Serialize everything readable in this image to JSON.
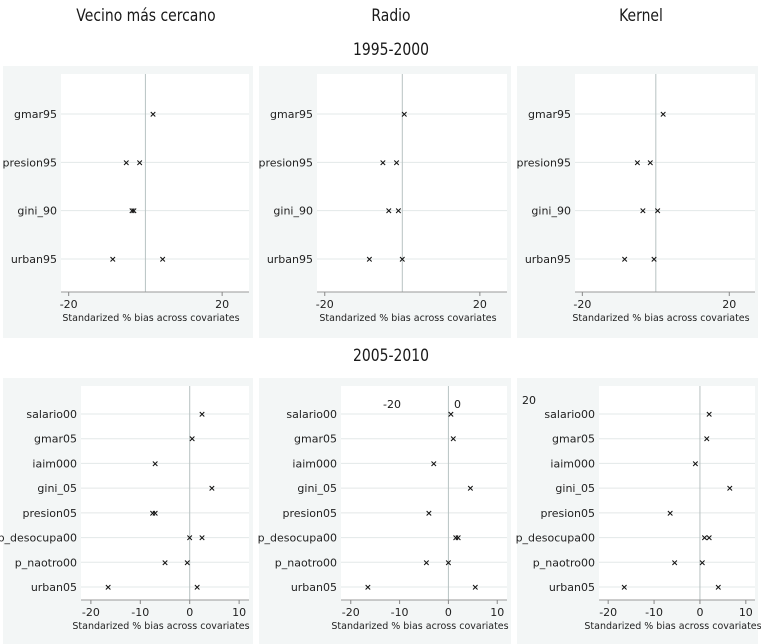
{
  "column_titles": [
    "Vecino más cercano",
    "Radio",
    "Kernel"
  ],
  "period_titles": [
    "1995-2000",
    "2005-2010"
  ],
  "stray_labels": [
    "-20",
    "0",
    "20"
  ],
  "chart_data": [
    {
      "type": "scatter",
      "panel": "Vecino más cercano 1995-2000",
      "xlabel": "Standarized % bias across covariates",
      "xticks": [
        -20,
        20
      ],
      "xlim": [
        -22,
        27
      ],
      "categories": [
        "gmar95",
        "presion95",
        "gini_90",
        "urban95"
      ],
      "unmatched": [
        null,
        -5.0,
        -3.5,
        -8.5
      ],
      "matched": [
        2.0,
        -1.5,
        -3.0,
        4.5
      ],
      "grid": true
    },
    {
      "type": "scatter",
      "panel": "Radio 1995-2000",
      "xlabel": "Standarized % bias across covariates",
      "xticks": [
        -20,
        20
      ],
      "xlim": [
        -22,
        27
      ],
      "categories": [
        "gmar95",
        "presion95",
        "gini_90",
        "urban95"
      ],
      "unmatched": [
        null,
        -5.0,
        -3.5,
        -8.5
      ],
      "matched": [
        0.5,
        -1.5,
        -1.0,
        0.0
      ],
      "grid": true
    },
    {
      "type": "scatter",
      "panel": "Kernel 1995-2000",
      "xlabel": "Standarized % bias across covariates",
      "xticks": [
        -20,
        20
      ],
      "xlim": [
        -22,
        27
      ],
      "categories": [
        "gmar95",
        "presion95",
        "gini_90",
        "urban95"
      ],
      "unmatched": [
        null,
        -5.0,
        -3.5,
        -8.5
      ],
      "matched": [
        2.0,
        -1.5,
        0.5,
        -0.5
      ],
      "grid": true
    },
    {
      "type": "scatter",
      "panel": "Vecino más cercano 2005-2010",
      "xlabel": "Standarized % bias across covariates",
      "xticks": [
        -20,
        -10,
        0,
        10
      ],
      "xlim": [
        -22,
        12
      ],
      "categories": [
        "salario00",
        "gmar05",
        "iaim000",
        "gini_05",
        "presion05",
        "p_desocupa00",
        "p_naotro00",
        "urban05"
      ],
      "unmatched": [
        null,
        null,
        -7.0,
        null,
        -7.0,
        null,
        -5.0,
        -16.5
      ],
      "matched": [
        2.5,
        0.5,
        null,
        4.5,
        -7.5,
        0.0,
        -0.5,
        1.5
      ],
      "extra": [
        null,
        null,
        null,
        null,
        null,
        2.5,
        null,
        null
      ],
      "grid": true
    },
    {
      "type": "scatter",
      "panel": "Radio 2005-2010",
      "xlabel": "Standarized % bias across covariates",
      "xticks": [
        -20,
        -10,
        0,
        10
      ],
      "xlim": [
        -22,
        12
      ],
      "categories": [
        "salario00",
        "gmar05",
        "iaim000",
        "gini_05",
        "presion05",
        "p_desocupa00",
        "p_naotro00",
        "urban05"
      ],
      "unmatched": [
        null,
        null,
        -3.0,
        null,
        -4.0,
        null,
        -4.5,
        -16.5
      ],
      "matched": [
        0.5,
        1.0,
        null,
        4.5,
        null,
        1.5,
        0.0,
        5.5
      ],
      "extra": [
        null,
        null,
        null,
        null,
        null,
        2.0,
        null,
        null
      ],
      "grid": true
    },
    {
      "type": "scatter",
      "panel": "Kernel 2005-2010",
      "xlabel": "Standarized % bias across covariates",
      "xticks": [
        -20,
        -10,
        0,
        10
      ],
      "xlim": [
        -22,
        12
      ],
      "categories": [
        "salario00",
        "gmar05",
        "iaim000",
        "gini_05",
        "presion05",
        "p_desocupa00",
        "p_naotro00",
        "urban05"
      ],
      "unmatched": [
        null,
        null,
        -1.0,
        null,
        -6.5,
        null,
        -5.5,
        -16.5
      ],
      "matched": [
        2.0,
        1.5,
        null,
        6.5,
        null,
        1.0,
        0.5,
        4.0
      ],
      "extra": [
        null,
        null,
        null,
        null,
        null,
        2.0,
        null,
        null
      ],
      "grid": true
    }
  ]
}
